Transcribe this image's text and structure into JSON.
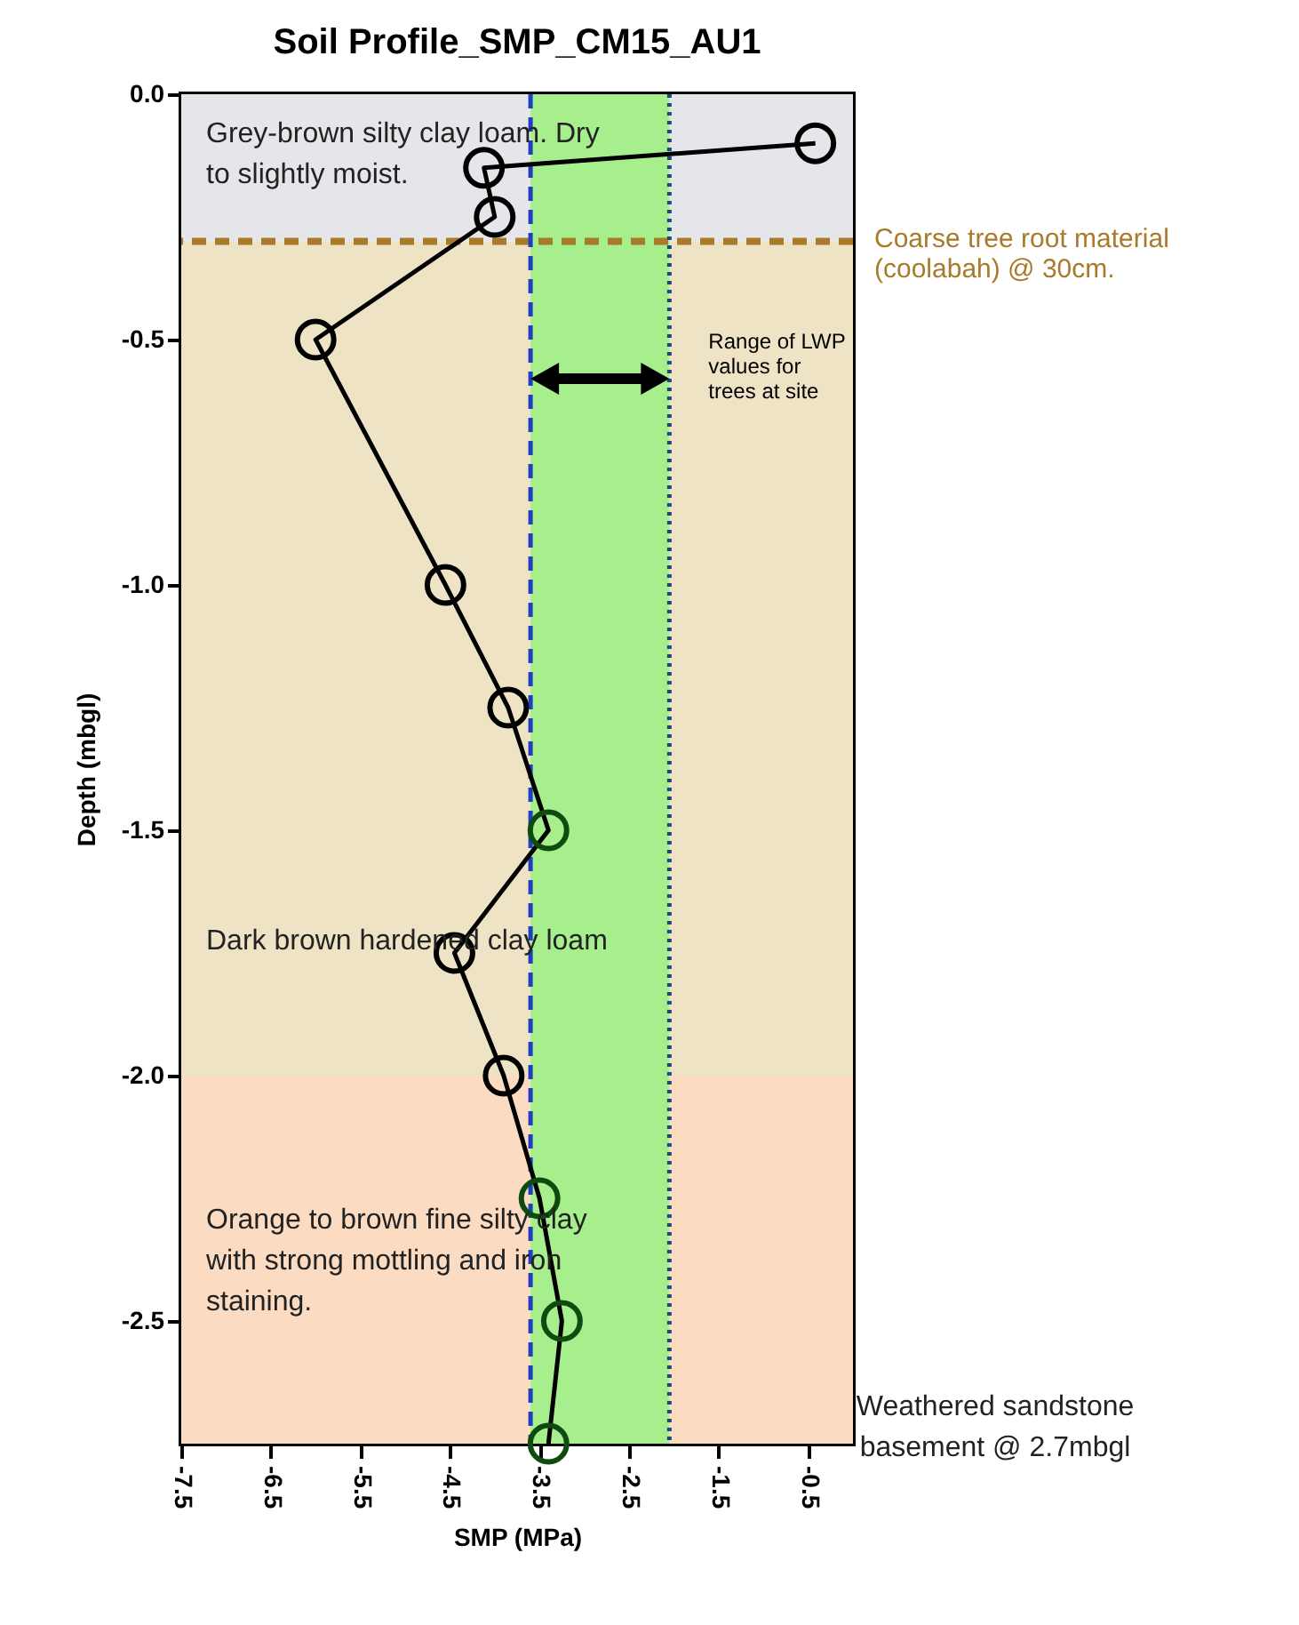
{
  "chart_data": {
    "type": "line",
    "title": "Soil Profile_SMP_CM15_AU1",
    "xlabel": "SMP (MPa)",
    "ylabel": "Depth (mbgl)",
    "x": [
      -0.42,
      -4.12,
      -4.0,
      -6.0,
      -4.55,
      -3.85,
      -3.4,
      -4.45,
      -3.9,
      -3.5,
      -3.25,
      -3.4
    ],
    "series": [
      {
        "color": "#000000",
        "colors": [
          "#000000",
          "#000000",
          "#000000",
          "#000000",
          "#000000",
          "#000000",
          "#0f4a0f",
          "#000000",
          "#000000",
          "#0f4a0f",
          "#0f4a0f",
          "#0f4a0f"
        ],
        "values": [
          -0.1,
          -0.15,
          -0.25,
          -0.5,
          -1.0,
          -1.25,
          -1.5,
          -1.75,
          -2.0,
          -2.25,
          -2.5,
          -2.75
        ]
      }
    ],
    "marker": "circle",
    "xlim": [
      -7.5,
      0
    ],
    "ylim": [
      -2.75,
      0
    ],
    "xticks": [
      -7.5,
      -6.5,
      -5.5,
      -4.5,
      -3.5,
      -2.5,
      -1.5,
      -0.5
    ],
    "yticks": [
      {
        "value": 0,
        "label": "0.0"
      },
      -0.5,
      {
        "value": -1,
        "label": "-1.0"
      },
      -1.5,
      {
        "value": -2,
        "label": "-2.0"
      },
      -2.5
    ],
    "bands": [
      {
        "axis": "y",
        "from": 0,
        "to": -0.3,
        "color": "#e6e6ea"
      },
      {
        "axis": "y",
        "from": -0.3,
        "to": -2.0,
        "color": "#efe3c6"
      },
      {
        "axis": "y",
        "from": -2.0,
        "to": -2.75,
        "color": "#fbdcc2"
      },
      {
        "axis": "x",
        "from": -3.6,
        "to": -2.05,
        "color": "#a6ef8c",
        "label": "Range of LWP values for trees at site"
      }
    ],
    "ref_lines": [
      {
        "axis": "y",
        "value": -0.3,
        "label": "Coarse tree root material (coolabah) @ 30cm.",
        "color": "#a87a2a",
        "line_style": "dashed"
      },
      {
        "axis": "x",
        "value": -3.6,
        "color": "#1f3fc0",
        "line_style": "dashed"
      },
      {
        "axis": "x",
        "value": -2.05,
        "color": "#1c4a80",
        "line_style": "dotted"
      }
    ],
    "annotations": [
      "Grey-brown silty clay loam. Dry to slightly moist.",
      "Dark brown hardened clay loam",
      "Orange to brown fine silty clay with strong mottling and iron staining.",
      "Weathered sandstone basement @ 2.7mbgl"
    ],
    "grid": false
  }
}
